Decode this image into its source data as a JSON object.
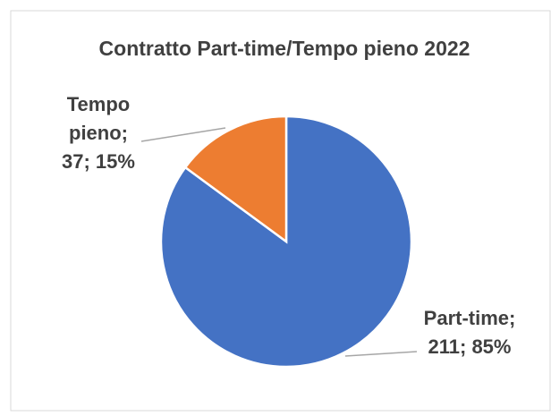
{
  "chart_data": {
    "type": "pie",
    "title": "Contratto Part-time/Tempo pieno 2022",
    "categories": [
      "Part-time",
      "Tempo pieno"
    ],
    "values": [
      211,
      37
    ],
    "value_labels": [
      [
        "Part-time;",
        "211; 85%"
      ],
      [
        "Tempo",
        "pieno;",
        "37; 15%"
      ]
    ],
    "colors": [
      "#4472c4",
      "#ed7d31"
    ]
  }
}
